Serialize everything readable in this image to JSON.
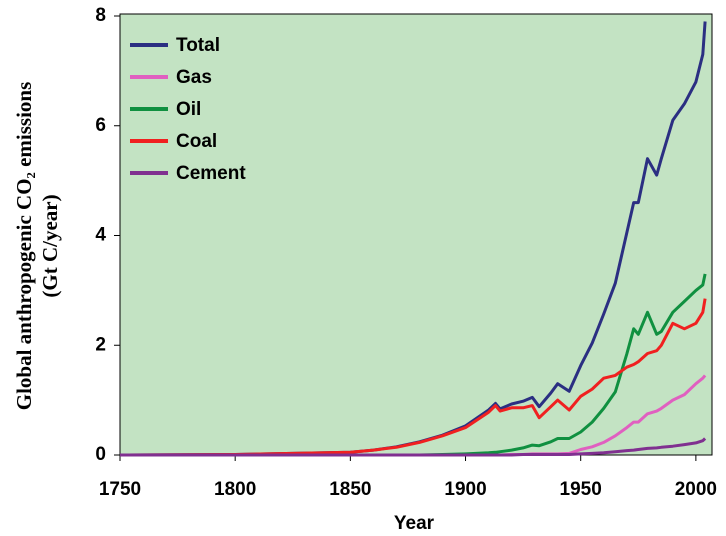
{
  "chart_data": {
    "type": "line",
    "xlabel": "Year",
    "ylabel": [
      "Global anthropogenic CO₂ emissions",
      "(Gt C/year)"
    ],
    "x": [
      1750,
      1800,
      1850,
      1860,
      1870,
      1880,
      1890,
      1900,
      1910,
      1913,
      1915,
      1920,
      1925,
      1929,
      1932,
      1937,
      1940,
      1945,
      1950,
      1955,
      1960,
      1965,
      1970,
      1973,
      1975,
      1979,
      1983,
      1985,
      1990,
      1995,
      2000,
      2003,
      2004
    ],
    "series": [
      {
        "name": "Total",
        "color": "#2b2f82",
        "values": [
          0,
          0.01,
          0.05,
          0.09,
          0.15,
          0.24,
          0.36,
          0.53,
          0.82,
          0.94,
          0.84,
          0.93,
          0.98,
          1.05,
          0.88,
          1.13,
          1.3,
          1.16,
          1.63,
          2.04,
          2.57,
          3.13,
          4.05,
          4.6,
          4.6,
          5.4,
          5.1,
          5.4,
          6.1,
          6.4,
          6.8,
          7.3,
          7.9
        ]
      },
      {
        "name": "Gas",
        "color": "#e060c0",
        "values": [
          0,
          0,
          0,
          0,
          0,
          0,
          0,
          0,
          0,
          0,
          0,
          0.01,
          0.01,
          0.02,
          0.02,
          0.02,
          0.02,
          0.03,
          0.1,
          0.15,
          0.23,
          0.35,
          0.5,
          0.6,
          0.6,
          0.75,
          0.8,
          0.85,
          1.0,
          1.1,
          1.3,
          1.4,
          1.45
        ]
      },
      {
        "name": "Oil",
        "color": "#109040",
        "values": [
          0,
          0,
          0,
          0,
          0,
          0,
          0.01,
          0.02,
          0.04,
          0.05,
          0.06,
          0.09,
          0.13,
          0.18,
          0.17,
          0.24,
          0.3,
          0.3,
          0.42,
          0.6,
          0.85,
          1.15,
          1.84,
          2.3,
          2.2,
          2.6,
          2.2,
          2.25,
          2.6,
          2.8,
          3.0,
          3.1,
          3.3
        ]
      },
      {
        "name": "Coal",
        "color": "#f02020",
        "values": [
          0,
          0.01,
          0.05,
          0.09,
          0.14,
          0.23,
          0.35,
          0.5,
          0.78,
          0.9,
          0.8,
          0.86,
          0.86,
          0.9,
          0.68,
          0.88,
          1.0,
          0.82,
          1.07,
          1.2,
          1.4,
          1.45,
          1.6,
          1.65,
          1.7,
          1.85,
          1.9,
          2.0,
          2.4,
          2.3,
          2.4,
          2.6,
          2.85
        ]
      },
      {
        "name": "Cement",
        "color": "#803090",
        "values": [
          0,
          0,
          0,
          0,
          0,
          0,
          0,
          0,
          0,
          0,
          0,
          0,
          0.01,
          0.01,
          0.01,
          0.01,
          0.01,
          0.01,
          0.02,
          0.03,
          0.04,
          0.06,
          0.08,
          0.09,
          0.1,
          0.12,
          0.13,
          0.14,
          0.16,
          0.19,
          0.22,
          0.26,
          0.3
        ]
      }
    ],
    "xlim": [
      1750,
      2007
    ],
    "xticks": [
      1750,
      1800,
      1850,
      1900,
      1950,
      2000
    ],
    "ylim": [
      0,
      8
    ],
    "yticks": [
      0,
      2,
      4,
      6,
      8
    ],
    "legend": "upper left",
    "background": "#c3e3c3"
  }
}
